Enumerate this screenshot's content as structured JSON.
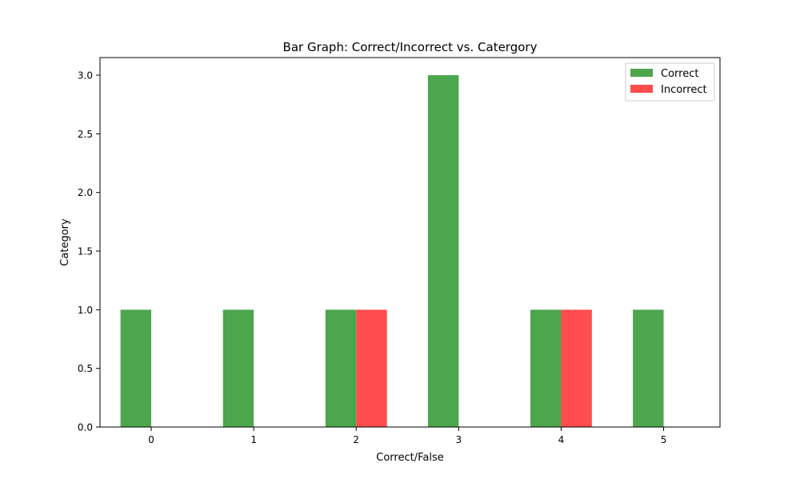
{
  "chart_data": {
    "type": "bar",
    "title": "Bar Graph: Correct/Incorrect vs. Catergory",
    "xlabel": "Correct/False",
    "ylabel": "Category",
    "categories": [
      "0",
      "1",
      "2",
      "3",
      "4",
      "5"
    ],
    "x_ticks": [
      "0",
      "1",
      "2",
      "3",
      "4",
      "5"
    ],
    "y_ticks": [
      "0.0",
      "0.5",
      "1.0",
      "1.5",
      "2.0",
      "2.5",
      "3.0"
    ],
    "xlim": [
      -0.5,
      5.55
    ],
    "ylim": [
      0,
      3.15
    ],
    "grid": false,
    "legend_position": "top-right",
    "series": [
      {
        "name": "Correct",
        "color": "#4ca64c",
        "values": [
          1,
          1,
          1,
          3,
          1,
          1
        ]
      },
      {
        "name": "Incorrect",
        "color": "#ff4c4c",
        "values": [
          0,
          0,
          1,
          0,
          1,
          0
        ]
      }
    ]
  }
}
